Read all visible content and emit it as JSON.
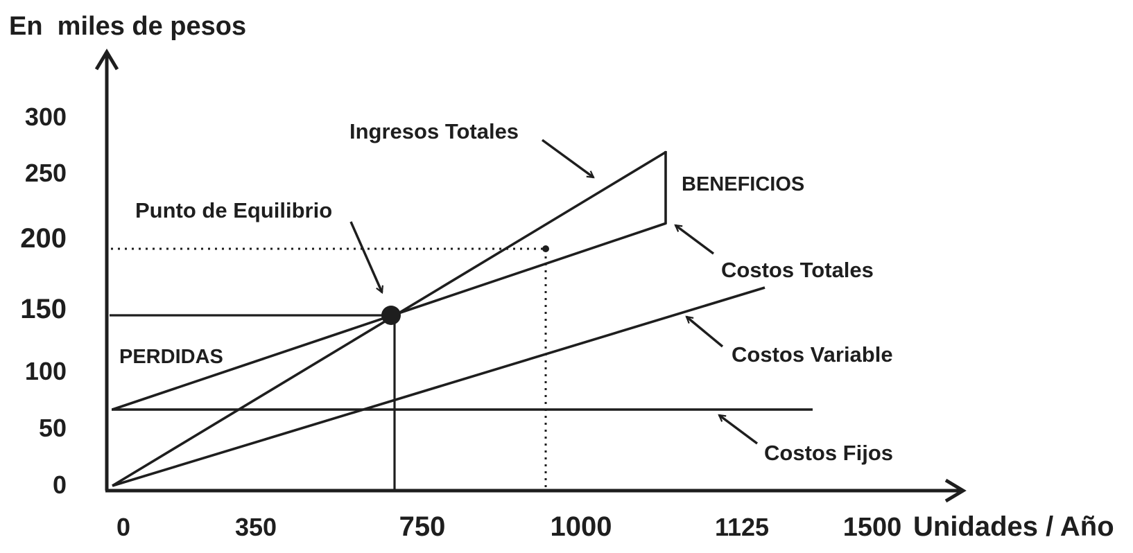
{
  "chart_data": {
    "type": "line",
    "title": "",
    "ylabel": "En  miles de pesos",
    "xlabel": "Unidades / Año",
    "x_ticks": [
      "0",
      "350",
      "750",
      "1000",
      "1125",
      "1500"
    ],
    "y_ticks": [
      "0",
      "50",
      "100",
      "150",
      "200",
      "250",
      "300"
    ],
    "series": [
      {
        "name": "Ingresos Totales",
        "points": [
          [
            0,
            0
          ],
          [
            750,
            150
          ],
          [
            1125,
            270
          ]
        ]
      },
      {
        "name": "Costos Totales",
        "points": [
          [
            0,
            68
          ],
          [
            750,
            150
          ],
          [
            1125,
            210
          ]
        ]
      },
      {
        "name": "Costos Variable",
        "points": [
          [
            0,
            0
          ],
          [
            1125,
            172
          ]
        ]
      },
      {
        "name": "Costos Fijos",
        "points": [
          [
            0,
            68
          ],
          [
            1500,
            68
          ]
        ]
      }
    ],
    "break_even": {
      "label": "Punto de Equilibrio",
      "x": 750,
      "y": 150
    },
    "reference_point": {
      "x": 1000,
      "y": 205
    },
    "regions": {
      "loss": "PERDIDAS",
      "profit": "BENEFICIOS"
    },
    "color": "#1e1e1e"
  }
}
